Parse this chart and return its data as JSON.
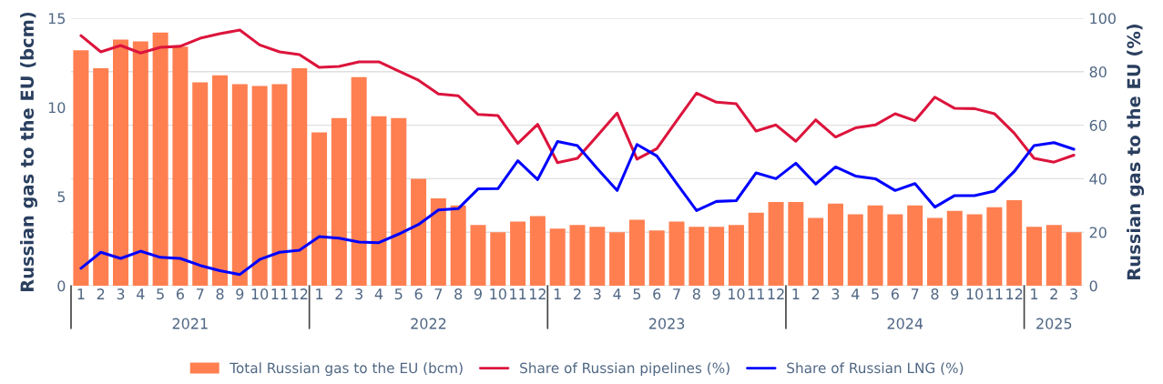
{
  "chart_data": {
    "type": "bar",
    "categories": [
      "1",
      "2",
      "3",
      "4",
      "5",
      "6",
      "7",
      "8",
      "9",
      "10",
      "11",
      "12",
      "1",
      "2",
      "3",
      "4",
      "5",
      "6",
      "7",
      "8",
      "9",
      "10",
      "11",
      "12",
      "1",
      "2",
      "3",
      "4",
      "5",
      "6",
      "7",
      "8",
      "9",
      "10",
      "11",
      "12",
      "1",
      "2",
      "3",
      "4",
      "5",
      "6",
      "7",
      "8",
      "9",
      "10",
      "11",
      "12",
      "1",
      "2",
      "3"
    ],
    "series": [
      {
        "name": "Total Russian gas to the EU (bcm)",
        "color": "#ff7f50",
        "values": [
          13.2,
          12.2,
          13.8,
          13.7,
          14.2,
          13.4,
          11.4,
          11.8,
          11.3,
          11.2,
          11.3,
          12.2,
          8.6,
          9.4,
          11.7,
          9.5,
          9.4,
          6.0,
          4.9,
          4.5,
          3.4,
          3.0,
          3.6,
          3.9,
          3.2,
          3.4,
          3.3,
          3.0,
          3.7,
          3.1,
          3.6,
          3.3,
          3.3,
          3.4,
          4.1,
          4.7,
          4.7,
          3.8,
          4.6,
          4.0,
          4.5,
          4.0,
          4.5,
          3.8,
          4.2,
          4.0,
          4.4,
          4.8,
          3.3,
          3.4,
          3.0
        ]
      },
      {
        "name": "Share of Russian pipelines (%)",
        "type": "line",
        "axis": "y2",
        "color": "#dc143c",
        "values": [
          93.5,
          87.4,
          89.8,
          87,
          89.1,
          89.5,
          92.5,
          94.2,
          95.6,
          90,
          87.4,
          86.4,
          81.6,
          82,
          83.7,
          83.7,
          80.2,
          76.8,
          71.7,
          71,
          64,
          63.6,
          53.2,
          60.3,
          46,
          47.6,
          56,
          64.5,
          47.3,
          51.2,
          61.7,
          72,
          68.6,
          68,
          57.8,
          60.1,
          54,
          62,
          55.6,
          59,
          60.1,
          64.3,
          61.7,
          70.5,
          66.3,
          66.2,
          64.3,
          57,
          47.6,
          46.2,
          48.8
        ]
      },
      {
        "name": "Share of Russian LNG (%)",
        "type": "line",
        "axis": "y2",
        "color": "#0000ff",
        "values": [
          6.5,
          12.5,
          10.2,
          12.9,
          10.6,
          10.2,
          7.6,
          5.6,
          4.2,
          9.8,
          12.5,
          13.3,
          18.4,
          17.8,
          16.3,
          16.1,
          19.3,
          22.9,
          28.3,
          28.8,
          36.2,
          36.3,
          46.7,
          39.7,
          53.9,
          52.4,
          43.8,
          35.6,
          52.8,
          48.5,
          38.2,
          28.1,
          31.5,
          31.8,
          42.2,
          40,
          45.8,
          38,
          44.4,
          41,
          40,
          35.6,
          38.2,
          29.4,
          33.7,
          33.7,
          35.4,
          42.7,
          52.4,
          53.5,
          51
        ]
      }
    ],
    "ylabel": "Russian gas to the EU (bcm)",
    "y2label": "Russian gas to the EU (%)",
    "ylim": [
      0,
      15
    ],
    "yticks": [
      0,
      5,
      10,
      15
    ],
    "y2lim": [
      0,
      100
    ],
    "y2ticks": [
      0,
      20,
      40,
      60,
      80,
      100
    ],
    "annotations": [
      "2021",
      "2022",
      "2023",
      "2024",
      "2025"
    ],
    "grid": "y2",
    "legend": "bottom"
  }
}
